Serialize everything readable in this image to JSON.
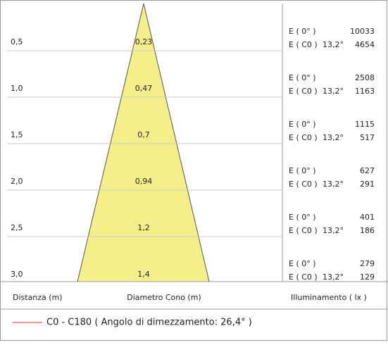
{
  "rows": [
    {
      "distance": "0,5",
      "diameter": "0,23",
      "e0_label": "E ( 0° )",
      "e0_value": "10033",
      "ec0_label": "E ( C0 )",
      "ec0_angle": "13,2°",
      "ec0_value": "4654"
    },
    {
      "distance": "1,0",
      "diameter": "0,47",
      "e0_label": "E ( 0° )",
      "e0_value": "2508",
      "ec0_label": "E ( C0 )",
      "ec0_angle": "13,2°",
      "ec0_value": "1163"
    },
    {
      "distance": "1,5",
      "diameter": "0,7",
      "e0_label": "E ( 0° )",
      "e0_value": "1115",
      "ec0_label": "E ( C0 )",
      "ec0_angle": "13,2°",
      "ec0_value": "517"
    },
    {
      "distance": "2,0",
      "diameter": "0,94",
      "e0_label": "E ( 0° )",
      "e0_value": "627",
      "ec0_label": "E ( C0 )",
      "ec0_angle": "13,2°",
      "ec0_value": "291"
    },
    {
      "distance": "2,5",
      "diameter": "1,2",
      "e0_label": "E ( 0° )",
      "e0_value": "401",
      "ec0_label": "E ( C0 )",
      "ec0_angle": "13,2°",
      "ec0_value": "186"
    },
    {
      "distance": "3,0",
      "diameter": "1,4",
      "e0_label": "E ( 0° )",
      "e0_value": "279",
      "ec0_label": "E ( C0 )",
      "ec0_angle": "13,2°",
      "ec0_value": "129"
    }
  ],
  "headers": {
    "distance": "Distanza (m)",
    "diameter": "Diametro Cono (m)",
    "illuminance": "Illuminamento ( lx )"
  },
  "legend": {
    "label": "C0 - C180  ( Angolo di dimezzamento: 26,4° )",
    "color": "#d9342b"
  }
}
